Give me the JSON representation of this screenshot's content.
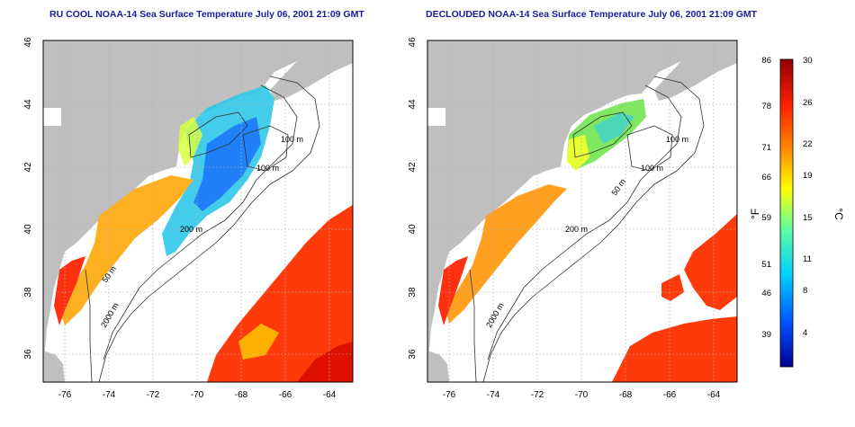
{
  "left_panel": {
    "title": "RU COOL NOAA-14 Sea Surface Temperature July 06, 2001 21:09 GMT",
    "contour_labels": [
      "100 m",
      "100 m",
      "200 m",
      "50 m",
      "2000 m"
    ]
  },
  "right_panel": {
    "title": "DECLOUDED NOAA-14 Sea Surface Temperature July 06, 2001 21:09 GMT",
    "contour_labels": [
      "100 m",
      "100 m",
      "50 m",
      "200 m",
      "2000 m"
    ]
  },
  "axes": {
    "x_ticks": [
      "-76",
      "-74",
      "-72",
      "-70",
      "-68",
      "-66",
      "-64"
    ],
    "y_ticks": [
      "36",
      "38",
      "40",
      "42",
      "44",
      "46"
    ],
    "xlim": [
      -77,
      -63
    ],
    "ylim": [
      35,
      46
    ]
  },
  "colorbar": {
    "fahrenheit_label": "°F",
    "celsius_label": "°C",
    "fahrenheit_ticks": [
      "86",
      "78",
      "71",
      "66",
      "59",
      "51",
      "46",
      "39"
    ],
    "celsius_ticks": [
      "30",
      "26",
      "22",
      "19",
      "15",
      "11",
      "8",
      "4"
    ],
    "range_c": [
      0,
      30
    ],
    "colors": [
      "#000090",
      "#0050ff",
      "#00d0ff",
      "#60ffa0",
      "#ffff00",
      "#ff9000",
      "#ff2000",
      "#900000"
    ]
  },
  "colors": {
    "title": "#1a1aa0",
    "land": "#bfbfbf",
    "ocean": "#ffffff",
    "gridline": "#b0b0b0"
  }
}
